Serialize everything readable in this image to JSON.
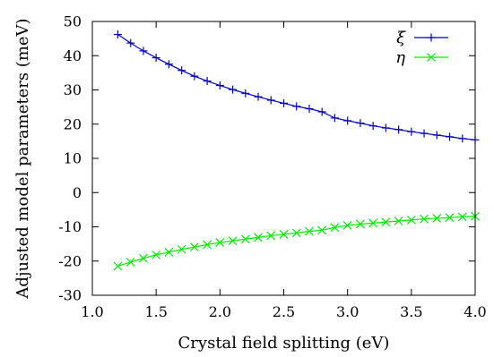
{
  "chart_data": {
    "type": "line",
    "title": "",
    "xlabel": "Crystal field splitting (eV)",
    "ylabel": "Adjusted model parameters (meV)",
    "xlim": [
      1.0,
      4.0
    ],
    "ylim": [
      -30,
      50
    ],
    "xticks": [
      "1.0",
      "1.5",
      "2.0",
      "2.5",
      "3.0",
      "3.5",
      "4.0"
    ],
    "yticks": [
      "-30",
      "-20",
      "-10",
      "0",
      "10",
      "20",
      "30",
      "40",
      "50"
    ],
    "grid": false,
    "legend_position": "top-right",
    "x": [
      1.2,
      1.3,
      1.4,
      1.5,
      1.6,
      1.7,
      1.8,
      1.9,
      2.0,
      2.1,
      2.2,
      2.3,
      2.4,
      2.5,
      2.6,
      2.7,
      2.8,
      2.9,
      3.0,
      3.1,
      3.2,
      3.3,
      3.4,
      3.5,
      3.6,
      3.7,
      3.8,
      3.9,
      4.0
    ],
    "series": [
      {
        "name": "ξ",
        "color": "#0000cc",
        "marker": "plus",
        "values": [
          46.2,
          43.7,
          41.4,
          39.4,
          37.5,
          35.7,
          34.0,
          32.6,
          31.3,
          30.1,
          29.0,
          28.0,
          27.0,
          26.1,
          25.2,
          24.5,
          23.6,
          21.8,
          21.0,
          20.3,
          19.5,
          18.9,
          18.4,
          17.8,
          17.3,
          16.8,
          16.3,
          15.8,
          15.4
        ]
      },
      {
        "name": "η",
        "color": "#00ee00",
        "marker": "cross",
        "values": [
          -21.5,
          -20.3,
          -19.2,
          -18.2,
          -17.4,
          -16.6,
          -15.9,
          -15.2,
          -14.6,
          -14.1,
          -13.6,
          -13.1,
          -12.6,
          -12.2,
          -11.8,
          -11.3,
          -11.0,
          -10.2,
          -9.6,
          -9.2,
          -8.9,
          -8.6,
          -8.3,
          -8.0,
          -7.7,
          -7.5,
          -7.3,
          -7.1,
          -6.9
        ]
      }
    ]
  }
}
